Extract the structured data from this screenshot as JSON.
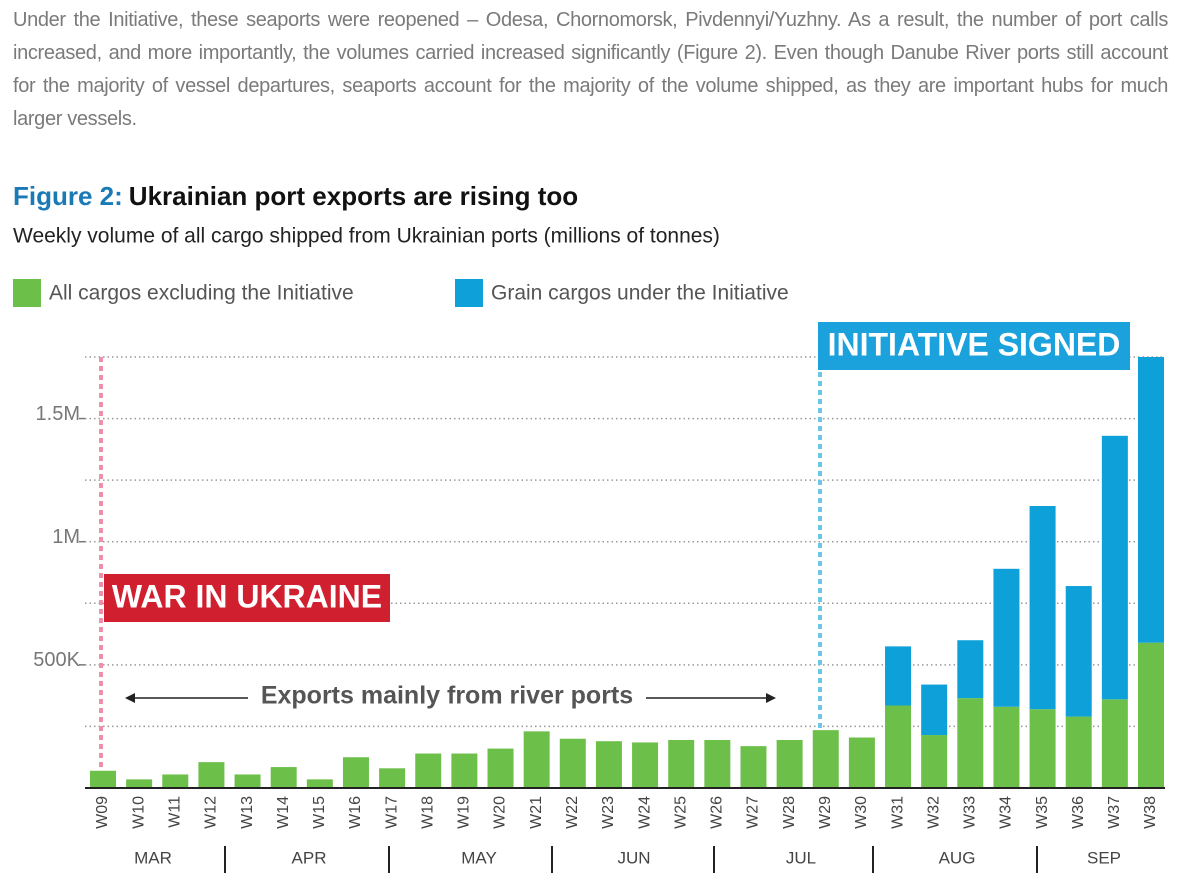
{
  "paragraph": "Under the Initiative, these seaports were reopened – Odesa, Chornomorsk, Pivdennyi/Yuzhny. As a result, the number of port calls increased, and more importantly, the volumes carried increased significantly (Figure 2). Even though Danube River ports still account for the majority of vessel departures, seaports account for the majority of the volume shipped, as they are important hubs for much larger vessels.",
  "chart_data": {
    "type": "stacked_bar",
    "title_prefix": "Figure 2:",
    "title": "Ukrainian port exports are rising too",
    "subtitle": "Weekly volume of all cargo shipped from Ukrainian ports (millions of tonnes)",
    "categories": [
      "W09",
      "W10",
      "W11",
      "W12",
      "W13",
      "W14",
      "W15",
      "W16",
      "W17",
      "W18",
      "W19",
      "W20",
      "W21",
      "W22",
      "W23",
      "W24",
      "W25",
      "W26",
      "W27",
      "W28",
      "W29",
      "W30",
      "W31",
      "W32",
      "W33",
      "W34",
      "W35",
      "W36",
      "W37",
      "W38"
    ],
    "months": [
      "MAR",
      "APR",
      "MAY",
      "JUN",
      "JUL",
      "AUG",
      "SEP"
    ],
    "series": [
      {
        "name": "All cargos excluding the Initiative",
        "color": "#6cc04a",
        "values": [
          70000,
          35000,
          55000,
          105000,
          55000,
          85000,
          35000,
          125000,
          80000,
          140000,
          140000,
          160000,
          230000,
          200000,
          190000,
          185000,
          195000,
          195000,
          170000,
          195000,
          235000,
          205000,
          335000,
          215000,
          365000,
          330000,
          320000,
          290000,
          360000,
          590000
        ]
      },
      {
        "name": "Grain cargos under the Initiative",
        "color": "#0ea0d9",
        "values": [
          0,
          0,
          0,
          0,
          0,
          0,
          0,
          0,
          0,
          0,
          0,
          0,
          0,
          0,
          0,
          0,
          0,
          0,
          0,
          0,
          0,
          0,
          240000,
          205000,
          235000,
          560000,
          825000,
          530000,
          1070000,
          1160000
        ]
      }
    ],
    "ylim": [
      0,
      1750000
    ],
    "yticks": [
      {
        "value": 500000,
        "label": "500K"
      },
      {
        "value": 1000000,
        "label": "1M"
      },
      {
        "value": 1500000,
        "label": "1.5M"
      }
    ],
    "minor_yticks": [
      250000,
      750000,
      1250000,
      1750000
    ],
    "grid": true,
    "annotations": [
      "WAR IN UKRAINE",
      "INITIATIVE SIGNED",
      "Exports mainly from river ports"
    ]
  }
}
